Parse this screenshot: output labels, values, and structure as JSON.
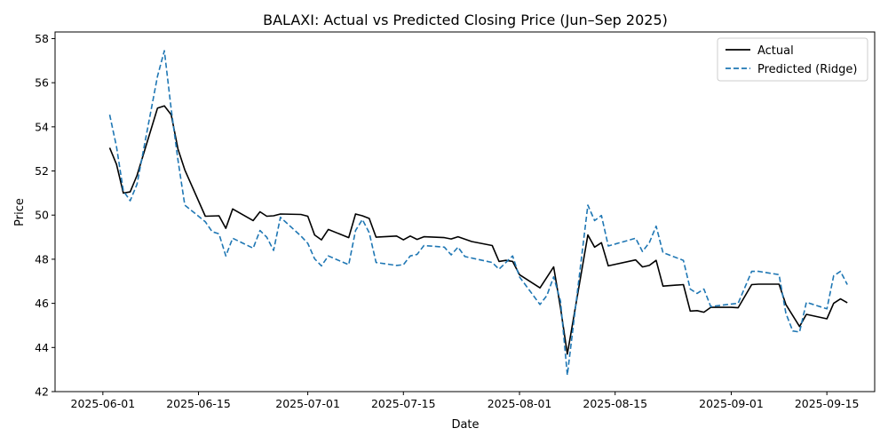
{
  "chart_data": {
    "type": "line",
    "title": "BALAXI: Actual vs Predicted Closing Price (Jun–Sep 2025)",
    "xlabel": "Date",
    "ylabel": "Price",
    "xlim": [
      "2025-05-25",
      "2025-09-22"
    ],
    "ylim": [
      42,
      58.3
    ],
    "x_ticks": [
      "2025-06-01",
      "2025-06-15",
      "2025-07-01",
      "2025-07-15",
      "2025-08-01",
      "2025-08-15",
      "2025-09-01",
      "2025-09-15"
    ],
    "y_ticks": [
      42,
      44,
      46,
      48,
      50,
      52,
      54,
      56,
      58
    ],
    "grid": false,
    "legend_position": "top-right",
    "series": [
      {
        "name": "Actual",
        "color": "#000000",
        "style": "solid",
        "points": [
          [
            "2025-06-02",
            53.05
          ],
          [
            "2025-06-03",
            52.3
          ],
          [
            "2025-06-04",
            51.0
          ],
          [
            "2025-06-05",
            51.05
          ],
          [
            "2025-06-06",
            51.8
          ],
          [
            "2025-06-09",
            54.85
          ],
          [
            "2025-06-10",
            54.95
          ],
          [
            "2025-06-11",
            54.55
          ],
          [
            "2025-06-12",
            53.0
          ],
          [
            "2025-06-13",
            52.05
          ],
          [
            "2025-06-16",
            49.95
          ],
          [
            "2025-06-18",
            49.97
          ],
          [
            "2025-06-19",
            49.4
          ],
          [
            "2025-06-20",
            50.28
          ],
          [
            "2025-06-23",
            49.75
          ],
          [
            "2025-06-24",
            50.15
          ],
          [
            "2025-06-25",
            49.95
          ],
          [
            "2025-06-26",
            49.97
          ],
          [
            "2025-06-27",
            50.05
          ],
          [
            "2025-06-30",
            50.03
          ],
          [
            "2025-07-01",
            49.95
          ],
          [
            "2025-07-02",
            49.1
          ],
          [
            "2025-07-03",
            48.88
          ],
          [
            "2025-07-04",
            49.35
          ],
          [
            "2025-07-07",
            48.98
          ],
          [
            "2025-07-08",
            50.05
          ],
          [
            "2025-07-09",
            49.97
          ],
          [
            "2025-07-10",
            49.85
          ],
          [
            "2025-07-11",
            49.0
          ],
          [
            "2025-07-14",
            49.05
          ],
          [
            "2025-07-15",
            48.88
          ],
          [
            "2025-07-16",
            49.05
          ],
          [
            "2025-07-17",
            48.9
          ],
          [
            "2025-07-18",
            49.02
          ],
          [
            "2025-07-21",
            48.98
          ],
          [
            "2025-07-22",
            48.92
          ],
          [
            "2025-07-23",
            49.02
          ],
          [
            "2025-07-25",
            48.8
          ],
          [
            "2025-07-28",
            48.62
          ],
          [
            "2025-07-29",
            47.9
          ],
          [
            "2025-07-30",
            47.95
          ],
          [
            "2025-07-31",
            47.9
          ],
          [
            "2025-08-01",
            47.3
          ],
          [
            "2025-08-04",
            46.7
          ],
          [
            "2025-08-06",
            47.65
          ],
          [
            "2025-08-07",
            45.8
          ],
          [
            "2025-08-08",
            43.7
          ],
          [
            "2025-08-11",
            49.1
          ],
          [
            "2025-08-12",
            48.55
          ],
          [
            "2025-08-13",
            48.75
          ],
          [
            "2025-08-14",
            47.7
          ],
          [
            "2025-08-18",
            47.97
          ],
          [
            "2025-08-19",
            47.65
          ],
          [
            "2025-08-20",
            47.72
          ],
          [
            "2025-08-21",
            47.95
          ],
          [
            "2025-08-22",
            46.78
          ],
          [
            "2025-08-25",
            46.85
          ],
          [
            "2025-08-26",
            45.65
          ],
          [
            "2025-08-27",
            45.67
          ],
          [
            "2025-08-28",
            45.6
          ],
          [
            "2025-08-29",
            45.82
          ],
          [
            "2025-09-01",
            45.82
          ],
          [
            "2025-09-02",
            45.8
          ],
          [
            "2025-09-04",
            46.85
          ],
          [
            "2025-09-05",
            46.87
          ],
          [
            "2025-09-08",
            46.87
          ],
          [
            "2025-09-09",
            45.95
          ],
          [
            "2025-09-11",
            44.95
          ],
          [
            "2025-09-12",
            45.5
          ],
          [
            "2025-09-15",
            45.3
          ],
          [
            "2025-09-16",
            46.0
          ],
          [
            "2025-09-17",
            46.2
          ],
          [
            "2025-09-18",
            46.03
          ]
        ]
      },
      {
        "name": "Predicted (Ridge)",
        "color": "#1f77b4",
        "style": "dashed",
        "points": [
          [
            "2025-06-02",
            54.55
          ],
          [
            "2025-06-03",
            53.1
          ],
          [
            "2025-06-04",
            51.1
          ],
          [
            "2025-06-05",
            50.65
          ],
          [
            "2025-06-06",
            51.4
          ],
          [
            "2025-06-09",
            56.3
          ],
          [
            "2025-06-10",
            57.45
          ],
          [
            "2025-06-11",
            54.8
          ],
          [
            "2025-06-12",
            52.5
          ],
          [
            "2025-06-13",
            50.45
          ],
          [
            "2025-06-16",
            49.7
          ],
          [
            "2025-06-17",
            49.25
          ],
          [
            "2025-06-18",
            49.15
          ],
          [
            "2025-06-19",
            48.15
          ],
          [
            "2025-06-20",
            48.95
          ],
          [
            "2025-06-23",
            48.5
          ],
          [
            "2025-06-24",
            49.3
          ],
          [
            "2025-06-25",
            49.0
          ],
          [
            "2025-06-26",
            48.4
          ],
          [
            "2025-06-27",
            49.9
          ],
          [
            "2025-06-30",
            49.05
          ],
          [
            "2025-07-01",
            48.72
          ],
          [
            "2025-07-02",
            48.02
          ],
          [
            "2025-07-03",
            47.7
          ],
          [
            "2025-07-04",
            48.15
          ],
          [
            "2025-07-07",
            47.75
          ],
          [
            "2025-07-08",
            49.3
          ],
          [
            "2025-07-09",
            49.8
          ],
          [
            "2025-07-10",
            49.2
          ],
          [
            "2025-07-11",
            47.85
          ],
          [
            "2025-07-14",
            47.72
          ],
          [
            "2025-07-15",
            47.75
          ],
          [
            "2025-07-16",
            48.15
          ],
          [
            "2025-07-17",
            48.22
          ],
          [
            "2025-07-18",
            48.62
          ],
          [
            "2025-07-21",
            48.55
          ],
          [
            "2025-07-22",
            48.2
          ],
          [
            "2025-07-23",
            48.55
          ],
          [
            "2025-07-24",
            48.12
          ],
          [
            "2025-07-28",
            47.85
          ],
          [
            "2025-07-29",
            47.55
          ],
          [
            "2025-07-30",
            47.85
          ],
          [
            "2025-07-31",
            48.15
          ],
          [
            "2025-08-01",
            47.2
          ],
          [
            "2025-08-04",
            45.95
          ],
          [
            "2025-08-05",
            46.35
          ],
          [
            "2025-08-06",
            47.2
          ],
          [
            "2025-08-07",
            46.1
          ],
          [
            "2025-08-08",
            42.75
          ],
          [
            "2025-08-11",
            50.45
          ],
          [
            "2025-08-12",
            49.75
          ],
          [
            "2025-08-13",
            49.98
          ],
          [
            "2025-08-14",
            48.6
          ],
          [
            "2025-08-18",
            48.95
          ],
          [
            "2025-08-19",
            48.35
          ],
          [
            "2025-08-20",
            48.75
          ],
          [
            "2025-08-21",
            49.5
          ],
          [
            "2025-08-22",
            48.3
          ],
          [
            "2025-08-25",
            47.95
          ],
          [
            "2025-08-26",
            46.65
          ],
          [
            "2025-08-27",
            46.45
          ],
          [
            "2025-08-28",
            46.65
          ],
          [
            "2025-08-29",
            45.85
          ],
          [
            "2025-09-01",
            45.97
          ],
          [
            "2025-09-02",
            46.0
          ],
          [
            "2025-09-04",
            47.45
          ],
          [
            "2025-09-05",
            47.45
          ],
          [
            "2025-09-08",
            47.3
          ],
          [
            "2025-09-09",
            45.55
          ],
          [
            "2025-09-10",
            44.75
          ],
          [
            "2025-09-11",
            44.7
          ],
          [
            "2025-09-12",
            46.05
          ],
          [
            "2025-09-15",
            45.75
          ],
          [
            "2025-09-16",
            47.25
          ],
          [
            "2025-09-17",
            47.45
          ],
          [
            "2025-09-18",
            46.85
          ]
        ]
      }
    ]
  }
}
